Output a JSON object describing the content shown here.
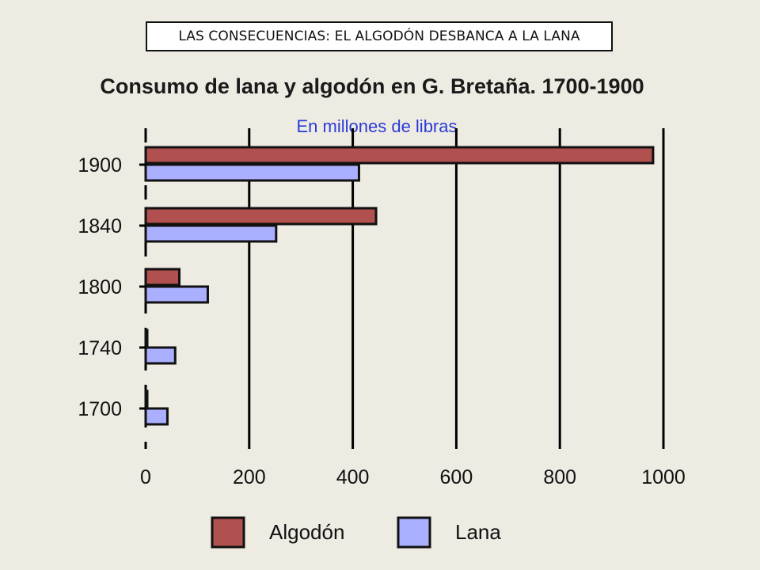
{
  "banner": {
    "text": "LAS CONSECUENCIAS: EL ALGODÓN DESBANCA A LA LANA"
  },
  "colors": {
    "algodon": "#b0504f",
    "lana": "#aab0ff",
    "background": "#eeebe2"
  },
  "chart_data": {
    "type": "bar",
    "orientation": "horizontal",
    "title": "Consumo de lana y algodón en G. Bretaña. 1700-1900",
    "subtitle": "En millones de libras",
    "categories": [
      "1900",
      "1840",
      "1800",
      "1740",
      "1700"
    ],
    "series": [
      {
        "name": "Algodón",
        "color": "#b0504f",
        "values": [
          980,
          445,
          65,
          3,
          3
        ]
      },
      {
        "name": "Lana",
        "color": "#aab0ff",
        "values": [
          412,
          252,
          120,
          57,
          42
        ]
      }
    ],
    "x_ticks": [
      0,
      200,
      400,
      600,
      800,
      1000
    ],
    "xlim": [
      0,
      1000
    ],
    "grid": true,
    "legend": "bottom"
  }
}
